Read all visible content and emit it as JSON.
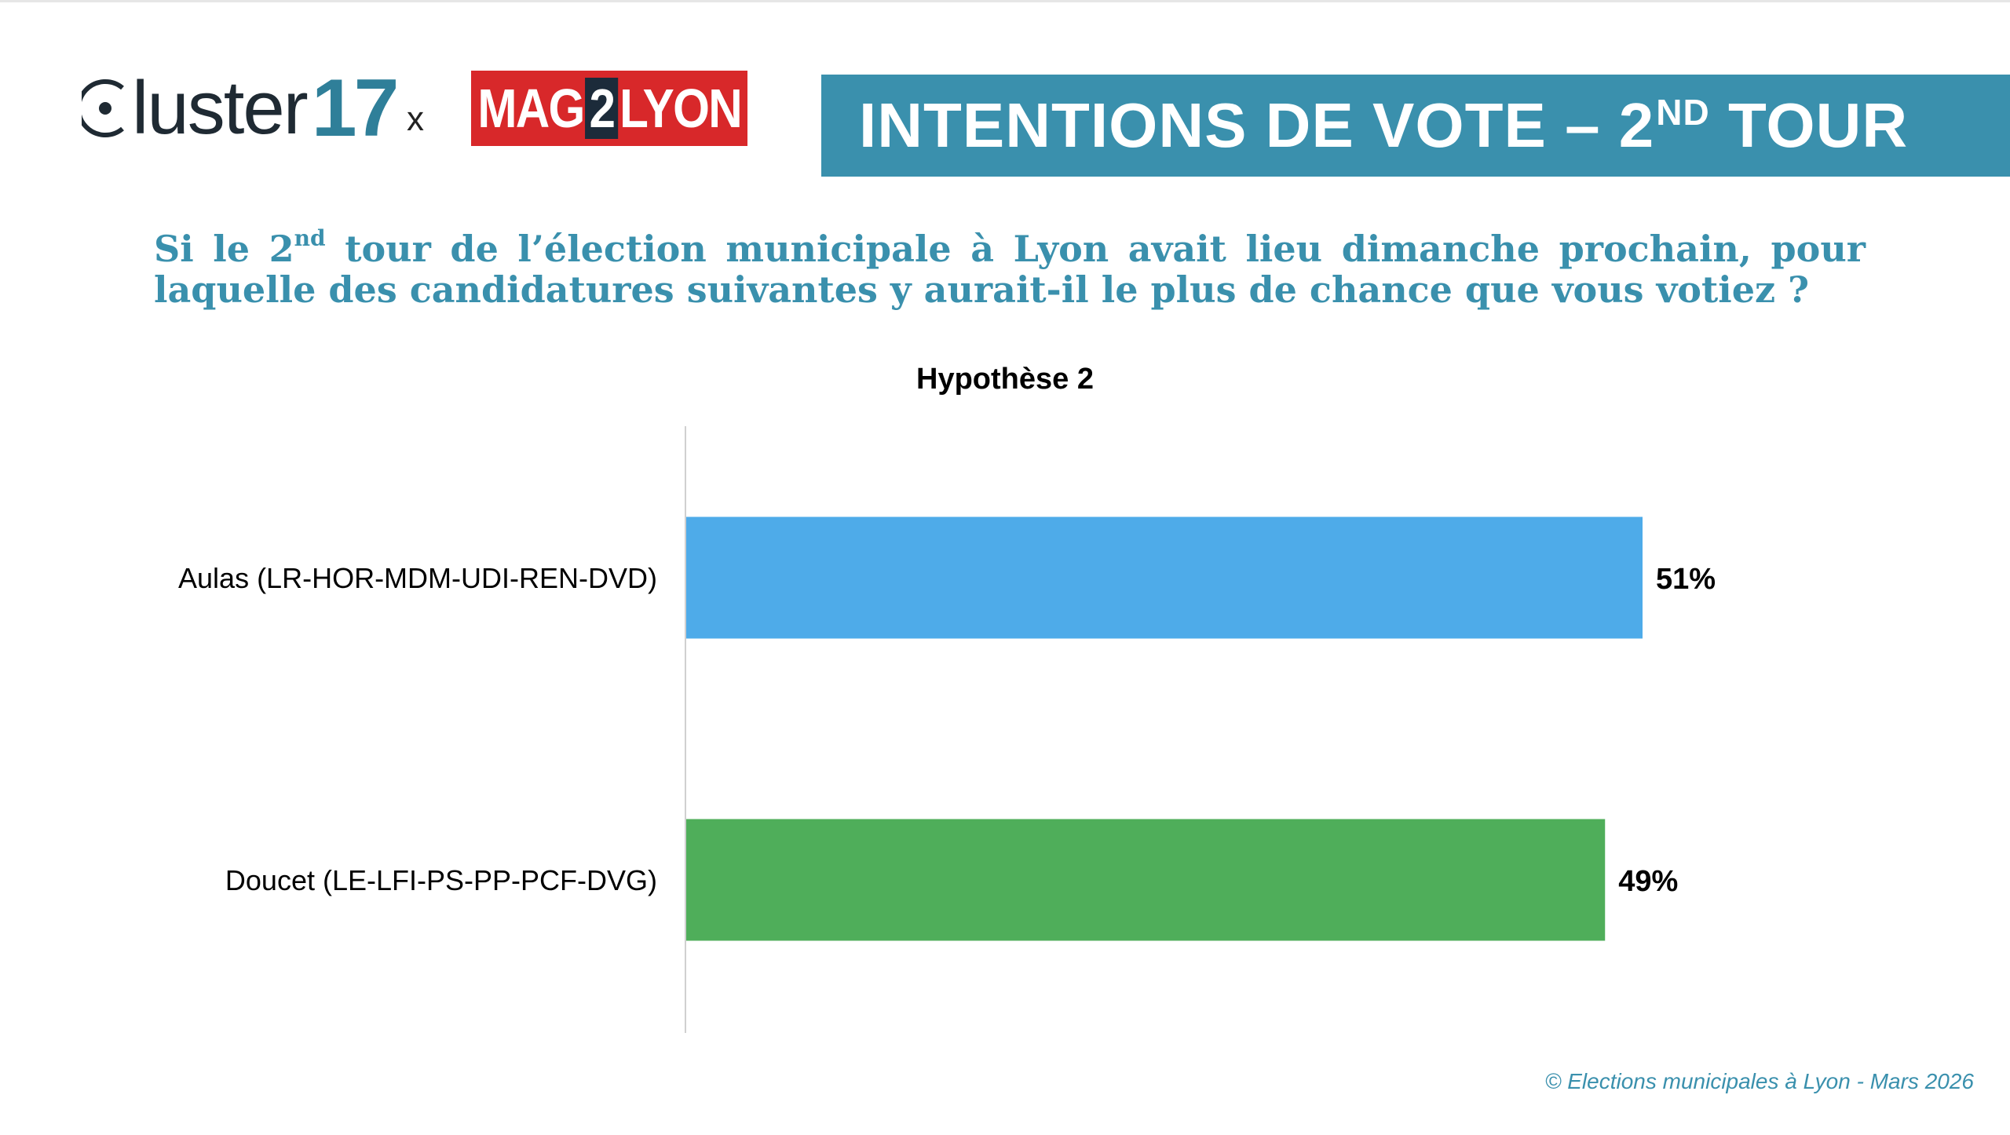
{
  "logos": {
    "cluster_text": "luster",
    "cluster_number": "17",
    "separator": "x",
    "mag_left": "MAG",
    "mag_two": "2",
    "mag_right": "LYON"
  },
  "header": {
    "title_main": "INTENTIONS DE VOTE – 2",
    "title_sup": "ND",
    "title_end": " TOUR"
  },
  "question": {
    "part1": "Si le 2",
    "sup": "nd",
    "part2": " tour de l’élection municipale à Lyon avait lieu dimanche prochain, pour laquelle des candidatures suivantes y aurait-il le plus de chance que vous votiez ?"
  },
  "chart_data": {
    "type": "bar",
    "orientation": "horizontal",
    "title": "Hypothèse 2",
    "categories": [
      "Aulas (LR-HOR-MDM-UDI-REN-DVD)",
      "Doucet (LE-LFI-PS-PP-PCF-DVG)"
    ],
    "values": [
      51,
      49
    ],
    "value_labels": [
      "51%",
      "49%"
    ],
    "colors": [
      "#4eabe9",
      "#4fae5a"
    ],
    "unit": "%",
    "xlim": [
      0,
      70
    ],
    "grid": false,
    "legend": "none"
  },
  "footer": {
    "copyright": "© Elections municipales à Lyon - Mars 2026"
  },
  "colors": {
    "accent": "#3a90ad",
    "brand_red": "#d8282a"
  }
}
